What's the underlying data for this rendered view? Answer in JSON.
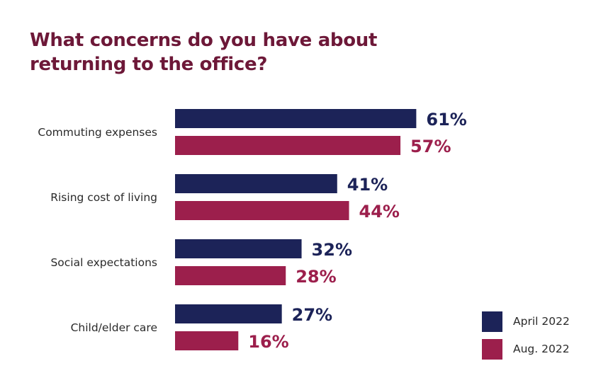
{
  "chart_data": {
    "type": "bar",
    "orientation": "horizontal",
    "title": "What concerns do you have about returning to the office?",
    "categories": [
      "Commuting expenses",
      "Rising cost of living",
      "Social expectations",
      "Child/elder care"
    ],
    "series": [
      {
        "name": "April 2022",
        "values": [
          61,
          41,
          32,
          27
        ],
        "labels": [
          "61%",
          "41%",
          "32%",
          "27%"
        ],
        "color": "#1c2358"
      },
      {
        "name": "Aug. 2022",
        "values": [
          57,
          44,
          28,
          16
        ],
        "labels": [
          "57%",
          "44%",
          "28%",
          "16%"
        ],
        "color": "#9c1f4c"
      }
    ],
    "xlim": [
      0,
      100
    ],
    "grid": false,
    "legend_position": "bottom-right"
  }
}
